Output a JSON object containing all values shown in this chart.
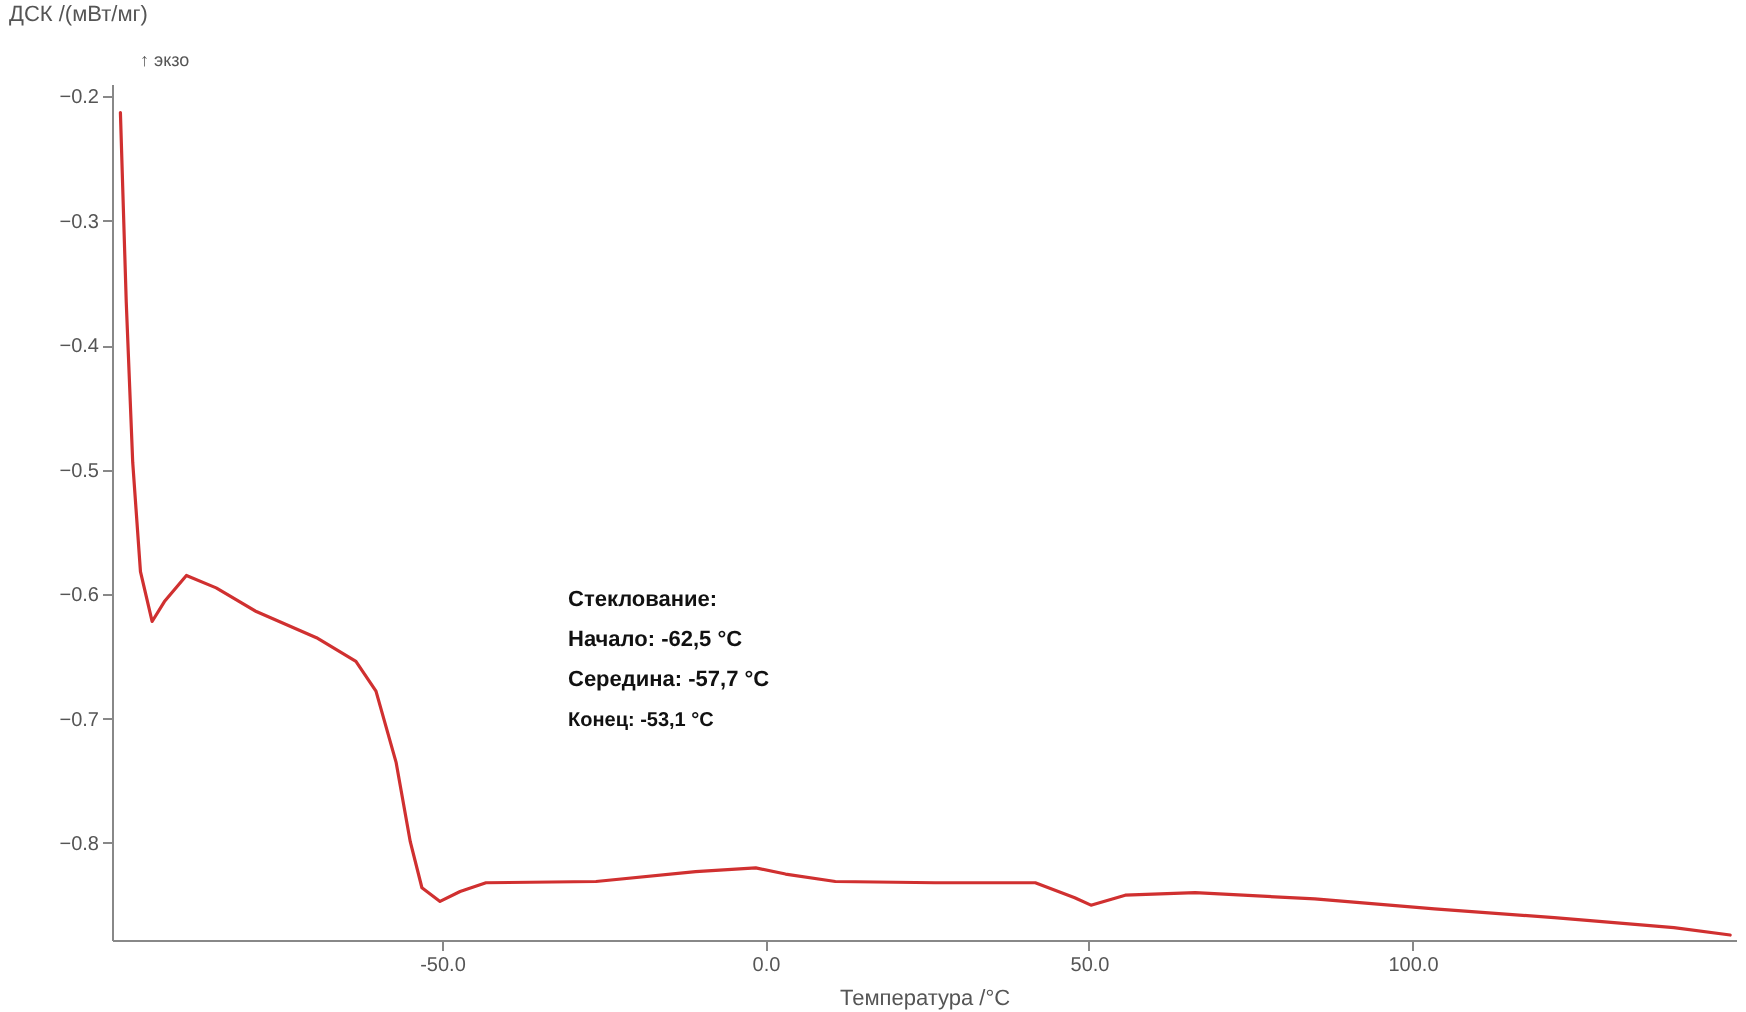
{
  "chart_data": {
    "type": "line",
    "xlabel": "Температура /°C",
    "ylabel": "ДСК /(мВт/мг)",
    "annotations": [
      "↑ экзо",
      "Стеклование:",
      "Начало: -62,5 °C",
      "Середина: -57,7 °C",
      "Конец: -53,1 °C"
    ],
    "xlim": [
      -101,
      150
    ],
    "ylim": [
      -0.878,
      -0.19
    ],
    "xticks": [
      {
        "value": -50,
        "label": "-50.0"
      },
      {
        "value": 0,
        "label": "0.0"
      },
      {
        "value": 50,
        "label": "50.0"
      },
      {
        "value": 100,
        "label": "100.0"
      }
    ],
    "yticks": [
      -0.8,
      -0.7,
      -0.6,
      -0.5,
      -0.4,
      -0.3,
      -0.2
    ],
    "grid": false,
    "marker": "none",
    "line_style": "solid",
    "series": [
      {
        "color": "#d03030",
        "x": [
          -99.7,
          -98.8,
          -97.8,
          -96.6,
          -94.8,
          -92.9,
          -89.5,
          -84.9,
          -78.7,
          -69.4,
          -63.3,
          -60.2,
          -57.1,
          -54.9,
          -53.1,
          -50.3,
          -47.2,
          -43.2,
          -26.2,
          -10.8,
          -1.5,
          3.1,
          10.8,
          26.2,
          41.7,
          47.8,
          50.3,
          55.6,
          66.4,
          84.9,
          103.4,
          121.9,
          140.4,
          149.1
        ],
        "values": [
          -0.213,
          -0.365,
          -0.494,
          -0.582,
          -0.622,
          -0.606,
          -0.585,
          -0.595,
          -0.614,
          -0.635,
          -0.654,
          -0.678,
          -0.735,
          -0.799,
          -0.836,
          -0.847,
          -0.839,
          -0.832,
          -0.831,
          -0.823,
          -0.82,
          -0.825,
          -0.831,
          -0.832,
          -0.832,
          -0.844,
          -0.85,
          -0.842,
          -0.84,
          -0.845,
          -0.853,
          -0.86,
          -0.868,
          -0.874
        ]
      }
    ]
  }
}
